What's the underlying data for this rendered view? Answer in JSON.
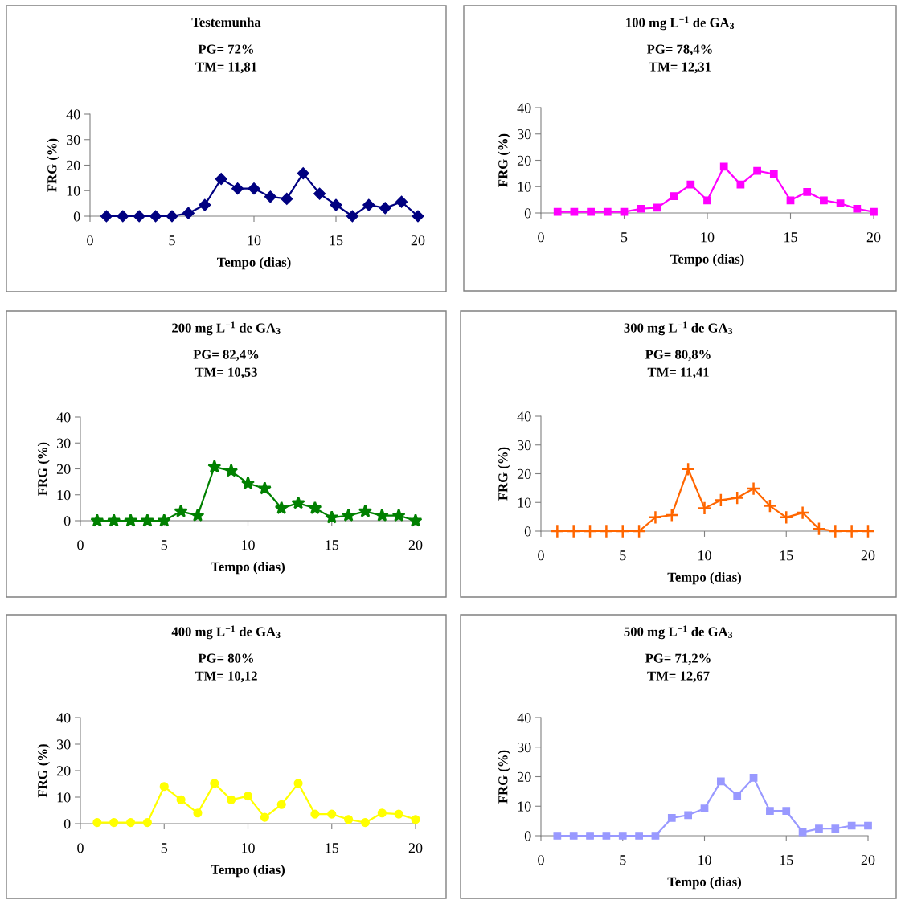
{
  "chart_data": [
    {
      "type": "line",
      "title": "Testemunha",
      "subtitle": "PG= 72%\nTM= 11,81",
      "xlabel": "Tempo (dias)",
      "ylabel": "FRG (%)",
      "x": [
        1,
        2,
        3,
        4,
        5,
        6,
        7,
        8,
        9,
        10,
        11,
        12,
        13,
        14,
        15,
        16,
        17,
        18,
        19,
        20
      ],
      "xlim": [
        0,
        20
      ],
      "xticks": [
        0,
        5,
        10,
        15,
        20
      ],
      "ylim": [
        0,
        40
      ],
      "yticks": [
        0,
        10,
        20,
        30,
        40
      ],
      "marker": "diamond",
      "grid": false,
      "legend": false,
      "series": [
        {
          "color": "#000080",
          "values": [
            0,
            0,
            0,
            0,
            0,
            1.2,
            4.4,
            14.6,
            10.8,
            10.8,
            7.6,
            6.8,
            16.8,
            8.8,
            4.4,
            0,
            4.4,
            3.2,
            5.6,
            0
          ]
        }
      ]
    },
    {
      "type": "line",
      "title": "100 mg L$^{−1}$ de GA$_{3}$",
      "subtitle": "PG= 78,4%\nTM= 12,31",
      "xlabel": "Tempo (dias)",
      "ylabel": "FRG (%)",
      "x": [
        1,
        2,
        3,
        4,
        5,
        6,
        7,
        8,
        9,
        10,
        11,
        12,
        13,
        14,
        15,
        16,
        17,
        18,
        19,
        20
      ],
      "xlim": [
        0,
        20
      ],
      "xticks": [
        0,
        5,
        10,
        15,
        20
      ],
      "ylim": [
        0,
        40
      ],
      "yticks": [
        0,
        10,
        20,
        30,
        40
      ],
      "marker": "square",
      "grid": false,
      "legend": false,
      "series": [
        {
          "color": "#ff00ff",
          "values": [
            0.4,
            0.4,
            0.4,
            0.4,
            0.4,
            1.6,
            2.0,
            6.4,
            10.8,
            4.8,
            17.6,
            10.8,
            16,
            14.8,
            4.8,
            8,
            4.8,
            3.6,
            1.6,
            0.4
          ]
        }
      ]
    },
    {
      "type": "line",
      "title": "200 mg L$^{−1}$ de GA$_{3}$",
      "subtitle": "PG= 82,4%\nTM= 10,53",
      "xlabel": "Tempo (dias)",
      "ylabel": "FRG (%)",
      "x": [
        1,
        2,
        3,
        4,
        5,
        6,
        7,
        8,
        9,
        10,
        11,
        12,
        13,
        14,
        15,
        16,
        17,
        18,
        19,
        20
      ],
      "xlim": [
        0,
        20
      ],
      "xticks": [
        0,
        5,
        10,
        15,
        20
      ],
      "ylim": [
        0,
        40
      ],
      "yticks": [
        0,
        10,
        20,
        30,
        40
      ],
      "marker": "star",
      "grid": false,
      "legend": false,
      "series": [
        {
          "color": "#008000",
          "values": [
            0,
            0,
            0,
            0,
            0,
            3.6,
            2,
            20.8,
            19.2,
            14.4,
            12.4,
            4.8,
            6.8,
            4.8,
            1.2,
            2,
            3.6,
            2,
            2,
            0
          ]
        }
      ]
    },
    {
      "type": "line",
      "title": "300 mg L$^{−1}$ de GA$_{3}$",
      "subtitle": "PG= 80,8%\nTM= 11,41",
      "xlabel": "Tempo (dias)",
      "ylabel": "FRG (%)",
      "x": [
        1,
        2,
        3,
        4,
        5,
        6,
        7,
        8,
        9,
        10,
        11,
        12,
        13,
        14,
        15,
        16,
        17,
        18,
        19,
        20
      ],
      "xlim": [
        0,
        20
      ],
      "xticks": [
        0,
        5,
        10,
        15,
        20
      ],
      "ylim": [
        0,
        40
      ],
      "yticks": [
        0,
        10,
        20,
        30,
        40
      ],
      "marker": "cross",
      "grid": false,
      "legend": false,
      "series": [
        {
          "color": "#ff6600",
          "values": [
            0,
            0,
            0,
            0,
            0,
            0,
            4.8,
            5.6,
            21.6,
            8,
            10.8,
            11.6,
            14.8,
            8.8,
            4.8,
            6.4,
            0.8,
            0,
            0,
            0
          ]
        }
      ]
    },
    {
      "type": "line",
      "title": "400 mg L$^{−1}$ de GA$_{3}$",
      "subtitle": "PG= 80%\nTM= 10,12",
      "xlabel": "Tempo (dias)",
      "ylabel": "FRG (%)",
      "x": [
        1,
        2,
        3,
        4,
        5,
        6,
        7,
        8,
        9,
        10,
        11,
        12,
        13,
        14,
        15,
        16,
        17,
        18,
        19,
        20
      ],
      "xlim": [
        0,
        20
      ],
      "xticks": [
        0,
        5,
        10,
        15,
        20
      ],
      "ylim": [
        0,
        40
      ],
      "yticks": [
        0,
        10,
        20,
        30,
        40
      ],
      "marker": "circle",
      "grid": false,
      "legend": false,
      "series": [
        {
          "color": "#ffff00",
          "values": [
            0.4,
            0.4,
            0.4,
            0.4,
            14,
            9,
            4,
            15.2,
            9,
            10.4,
            2.4,
            7.2,
            15.2,
            3.6,
            3.6,
            1.6,
            0.4,
            4,
            3.6,
            1.6
          ]
        }
      ]
    },
    {
      "type": "line",
      "title": "500 mg L$^{−1}$ de GA$_{3}$",
      "subtitle": "PG= 71,2%\nTM= 12,67",
      "xlabel": "Tempo (dias)",
      "ylabel": "FRG (%)",
      "x": [
        1,
        2,
        3,
        4,
        5,
        6,
        7,
        8,
        9,
        10,
        11,
        12,
        13,
        14,
        15,
        16,
        17,
        18,
        19,
        20
      ],
      "xlim": [
        0,
        20
      ],
      "xticks": [
        0,
        5,
        10,
        15,
        20
      ],
      "ylim": [
        0,
        40
      ],
      "yticks": [
        0,
        10,
        20,
        30,
        40
      ],
      "marker": "square",
      "grid": false,
      "legend": false,
      "series": [
        {
          "color": "#9999ff",
          "values": [
            0,
            0,
            0,
            0,
            0,
            0,
            0,
            6,
            7,
            9.2,
            18.4,
            13.6,
            19.6,
            8.4,
            8.4,
            1.2,
            2.4,
            2.4,
            3.4,
            3.4
          ]
        }
      ]
    }
  ]
}
